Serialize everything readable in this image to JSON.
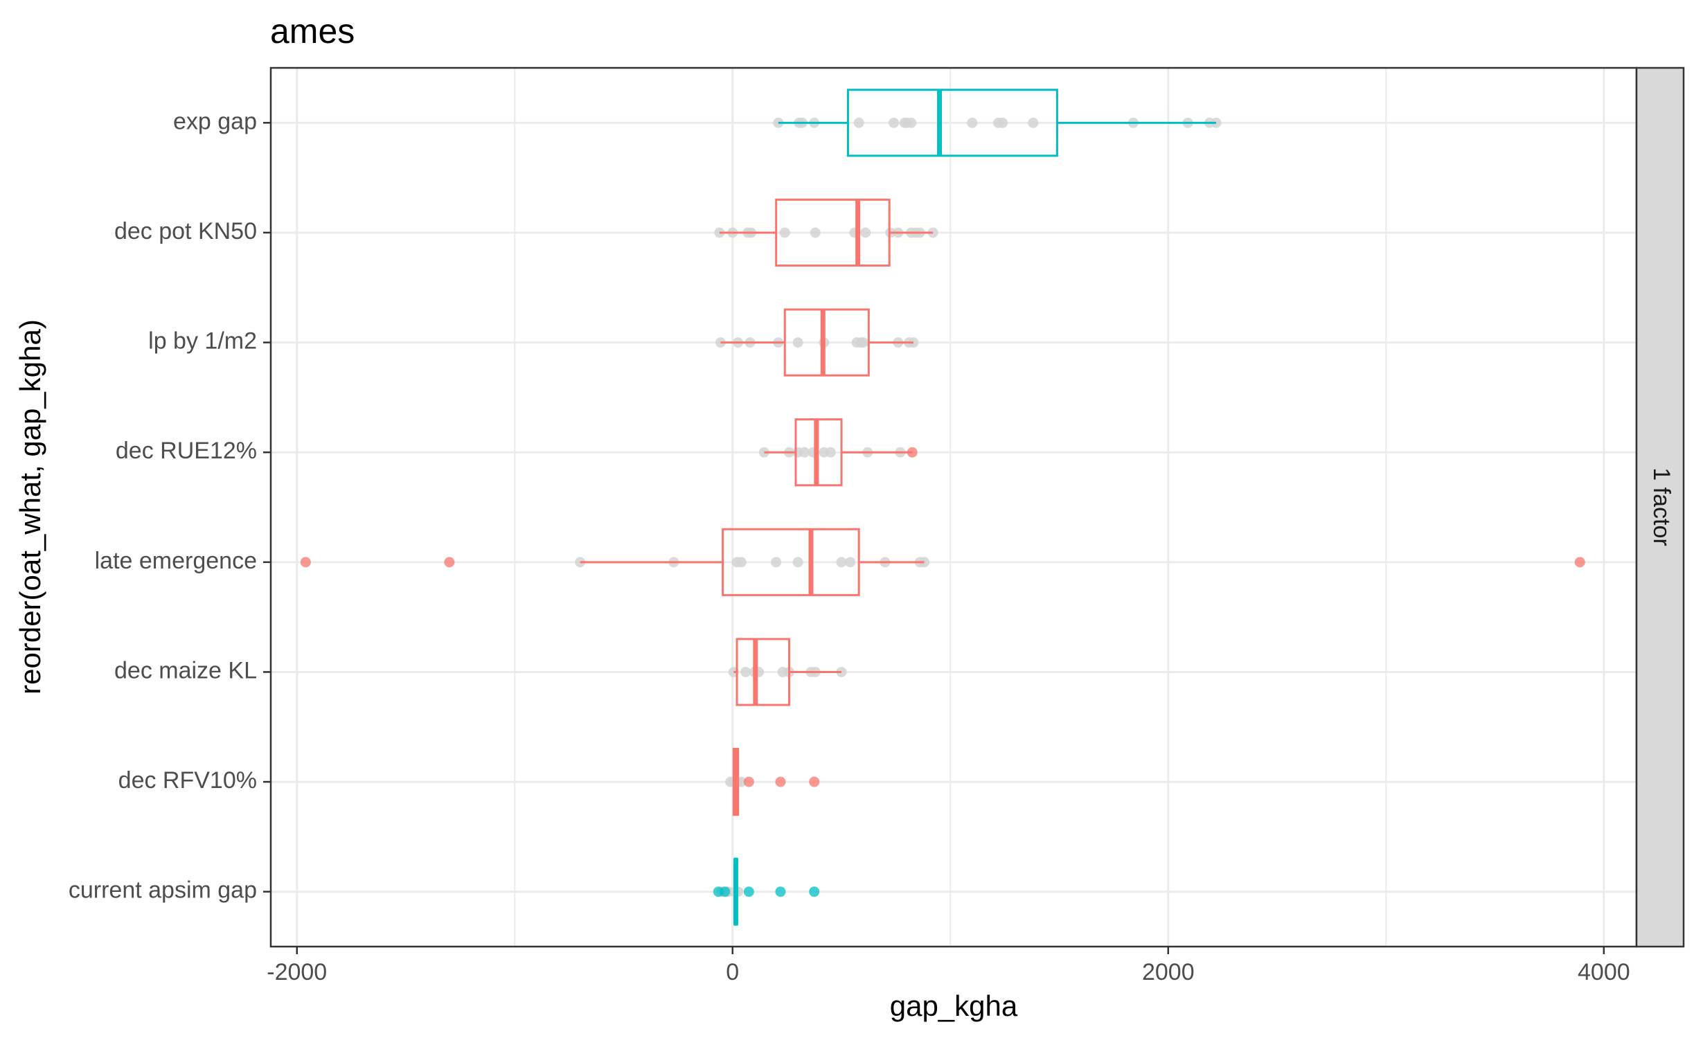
{
  "chart_data": {
    "type": "boxplot",
    "title": "ames",
    "xlabel": "gap_kgha",
    "ylabel": "reorder(oat_what, gap_kgha)",
    "facet_label": "1 factor",
    "xlim": [
      -2120,
      4150
    ],
    "x_ticks": [
      -2000,
      0,
      2000,
      4000
    ],
    "x_tick_labels": [
      "-2000",
      "0",
      "2000",
      "4000"
    ],
    "grid": true,
    "colors": {
      "highlight": "#00bfc4",
      "default": "#f8766d",
      "jitter": "#d4d4d4"
    },
    "categories": [
      {
        "label": "exp gap",
        "color": "highlight",
        "q1": 530,
        "median": 950,
        "q3": 1490,
        "whisker_low": 210,
        "whisker_high": 2220,
        "outliers": [],
        "points": [
          210,
          305,
          320,
          375,
          580,
          740,
          790,
          800,
          820,
          1100,
          1220,
          1240,
          1380,
          1840,
          2090,
          2190,
          2220
        ]
      },
      {
        "label": "dec pot KN50",
        "color": "default",
        "q1": 200,
        "median": 575,
        "q3": 720,
        "whisker_low": -60,
        "whisker_high": 920,
        "outliers": [],
        "points": [
          -60,
          0,
          70,
          85,
          240,
          380,
          560,
          610,
          725,
          760,
          820,
          840,
          860,
          920
        ]
      },
      {
        "label": "lp by 1/m2",
        "color": "default",
        "q1": 240,
        "median": 415,
        "q3": 625,
        "whisker_low": -55,
        "whisker_high": 830,
        "outliers": [],
        "points": [
          -55,
          25,
          80,
          210,
          300,
          420,
          570,
          590,
          600,
          760,
          810,
          830
        ]
      },
      {
        "label": "dec RUE12%",
        "color": "default",
        "q1": 290,
        "median": 385,
        "q3": 500,
        "whisker_low": 145,
        "whisker_high": 825,
        "outliers": [
          825
        ],
        "points": [
          145,
          260,
          300,
          330,
          370,
          420,
          450,
          620,
          770
        ]
      },
      {
        "label": "late emergence",
        "color": "default",
        "q1": -45,
        "median": 360,
        "q3": 580,
        "whisker_low": -700,
        "whisker_high": 880,
        "outliers": [
          -1960,
          -1300,
          3890
        ],
        "points": [
          -700,
          -270,
          20,
          40,
          200,
          300,
          500,
          540,
          700,
          860,
          880
        ]
      },
      {
        "label": "dec maize KL",
        "color": "default",
        "q1": 20,
        "median": 105,
        "q3": 260,
        "whisker_low": 5,
        "whisker_high": 500,
        "outliers": [],
        "points": [
          5,
          60,
          100,
          120,
          230,
          260,
          360,
          380,
          500
        ]
      },
      {
        "label": "dec RFV10%",
        "color": "default",
        "q1": 5,
        "median": 15,
        "q3": 25,
        "whisker_low": 0,
        "whisker_high": 30,
        "outliers": [
          75,
          220,
          375
        ],
        "points": [
          -10,
          5,
          15,
          25,
          40
        ]
      },
      {
        "label": "current apsim gap",
        "color": "highlight",
        "q1": 10,
        "median": 15,
        "q3": 20,
        "whisker_low": 5,
        "whisker_high": 25,
        "outliers": [
          -65,
          -35,
          75,
          220,
          375
        ],
        "points": [
          -50,
          -20,
          10,
          25
        ]
      }
    ]
  }
}
